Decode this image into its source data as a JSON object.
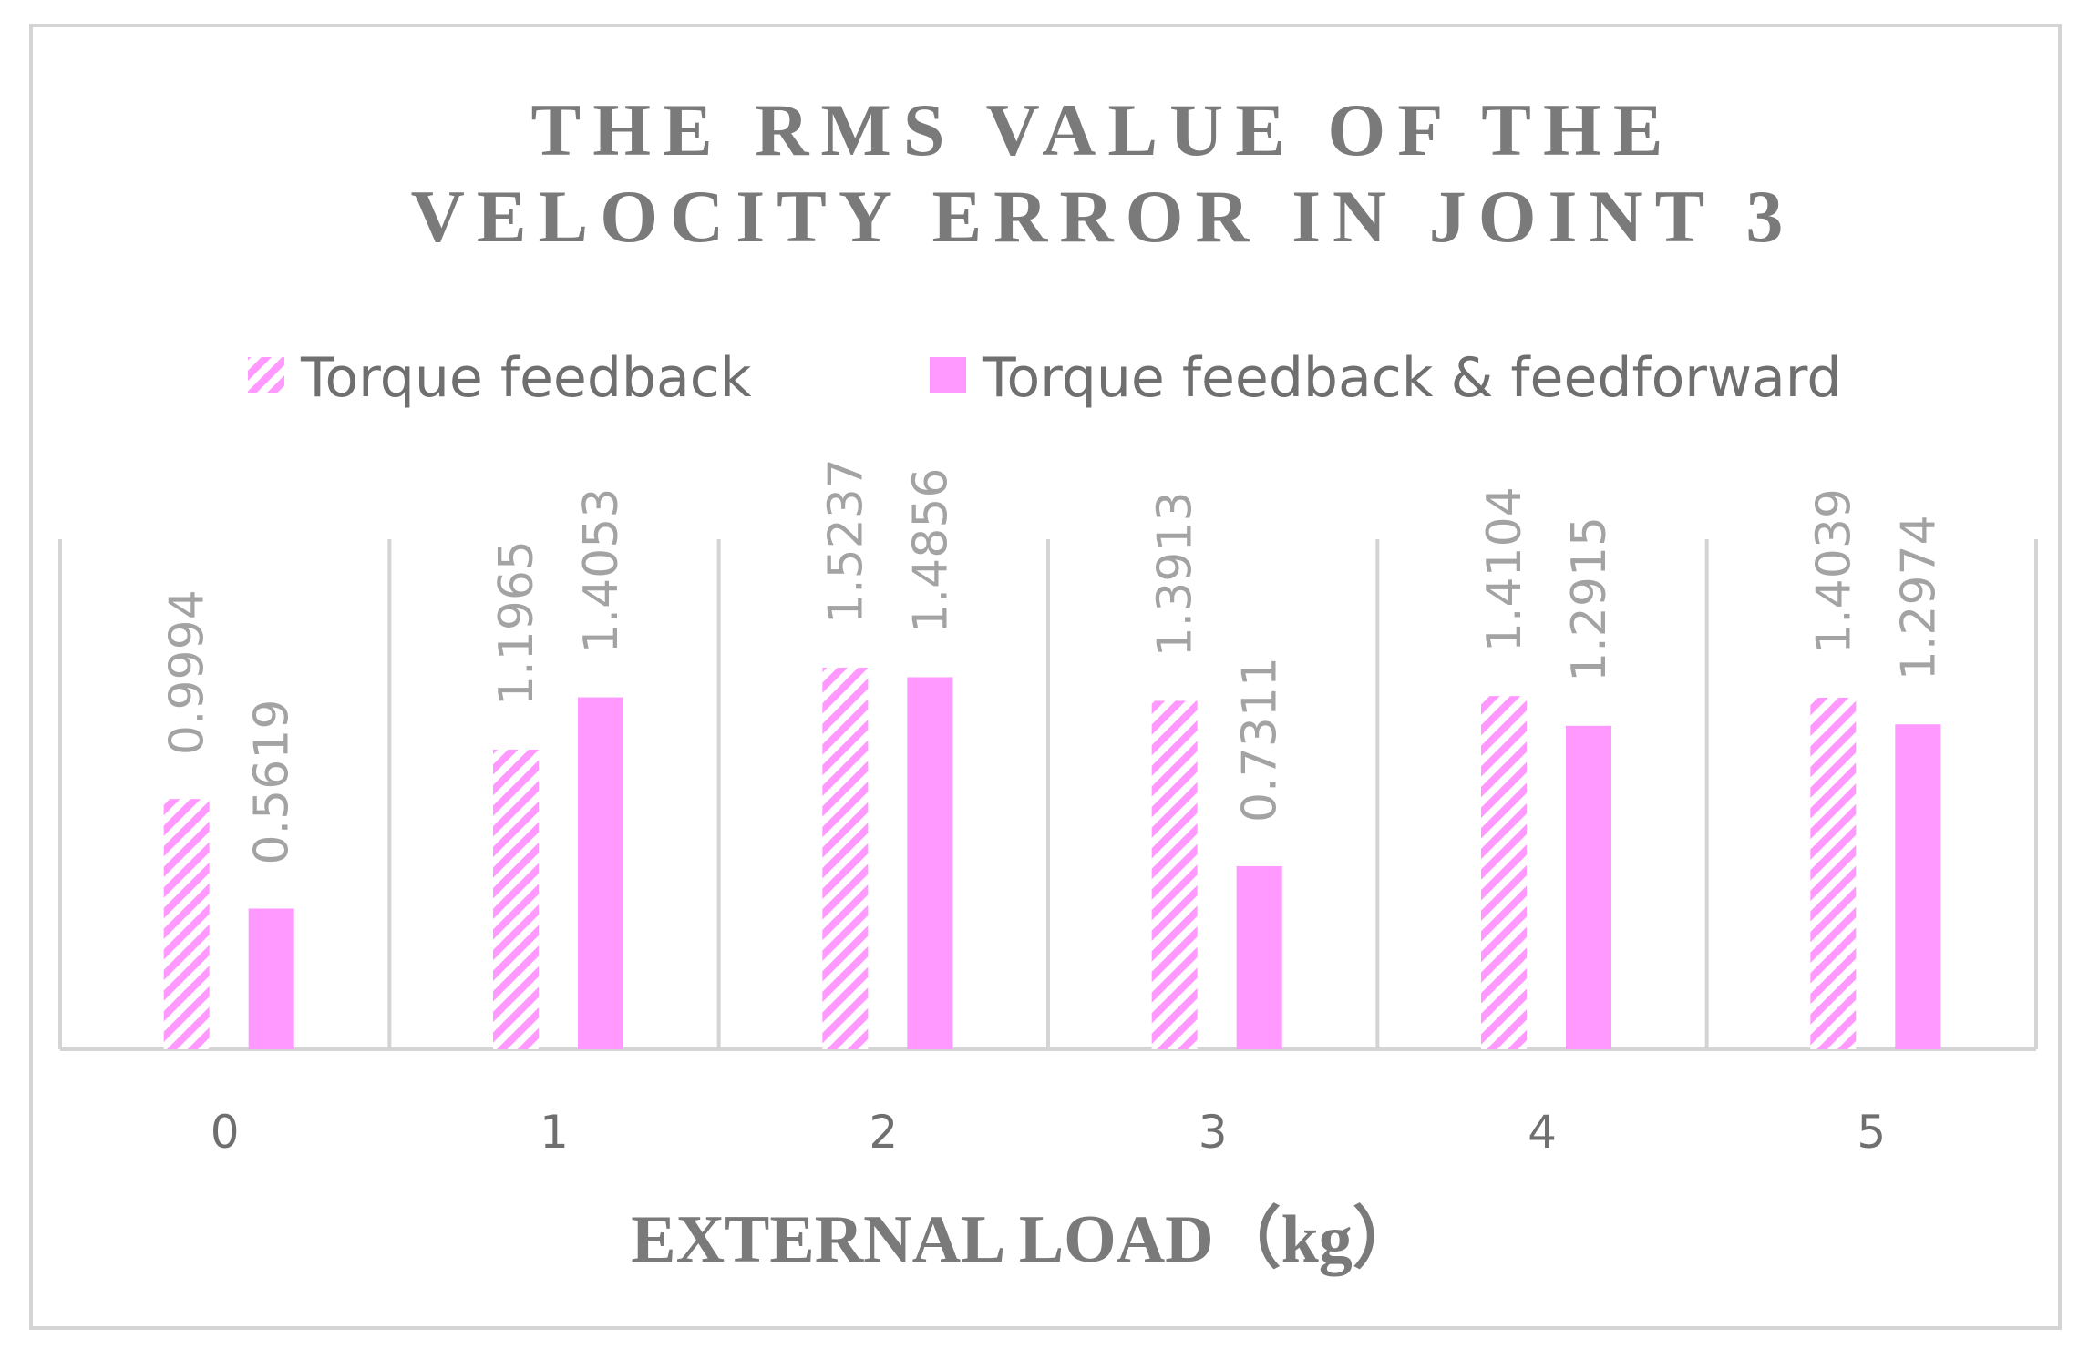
{
  "colors": {
    "bar": "#ff99ff",
    "hatch_bg": "#ffffff",
    "axis": "#d4d4d4",
    "grid": "#d4d4d4"
  },
  "chart_data": {
    "type": "bar",
    "title_lines": [
      "THE RMS VALUE OF THE",
      "VELOCITY ERROR IN JOINT 3"
    ],
    "title": "THE RMS VALUE OF THE VELOCITY ERROR IN JOINT 3",
    "xlabel": "EXTERNAL LOAD（kg）",
    "ylabel": "",
    "categories": [
      "0",
      "1",
      "2",
      "3",
      "4",
      "5"
    ],
    "series": [
      {
        "name": "Torque feedback",
        "pattern": "hatched",
        "values": [
          0.9994,
          1.1965,
          1.5237,
          1.3913,
          1.4104,
          1.4039
        ],
        "labels": [
          "0.9994",
          "1.1965",
          "1.5237",
          "1.3913",
          "1.4104",
          "1.4039"
        ]
      },
      {
        "name": "Torque feedback & feedforward",
        "pattern": "solid",
        "values": [
          0.5619,
          1.4053,
          1.4856,
          0.7311,
          1.2915,
          1.2974
        ],
        "labels": [
          "0.5619",
          "1.4053",
          "1.4856",
          "0.7311",
          "1.2915",
          "1.2974"
        ]
      }
    ],
    "ylim": [
      0,
      2.0
    ],
    "grid": "vertical separators between categories",
    "legend_position": "top"
  }
}
